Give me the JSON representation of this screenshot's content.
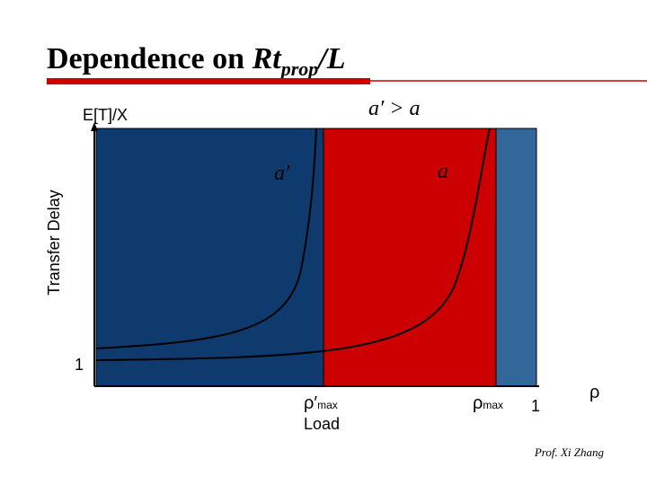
{
  "header": {
    "title": {
      "text": "Dependence on ",
      "emph": "Rt",
      "sub": "prop",
      "tail": "/L"
    }
  },
  "plot": {
    "y_label": "Transfer Delay",
    "y_top_label": "E[T]/X",
    "relation": "a′ > a",
    "curves": [
      {
        "label": "a′"
      },
      {
        "label": "a"
      }
    ],
    "y_tick": "1",
    "x_ticks": [
      {
        "symbol": "ρ′",
        "sub": "max"
      },
      {
        "symbol": "ρ",
        "sub": "max"
      },
      "1"
    ],
    "x_label": "Load",
    "x_axis_symbol": "ρ"
  },
  "footer": {
    "author": "Prof. Xi Zhang"
  }
}
